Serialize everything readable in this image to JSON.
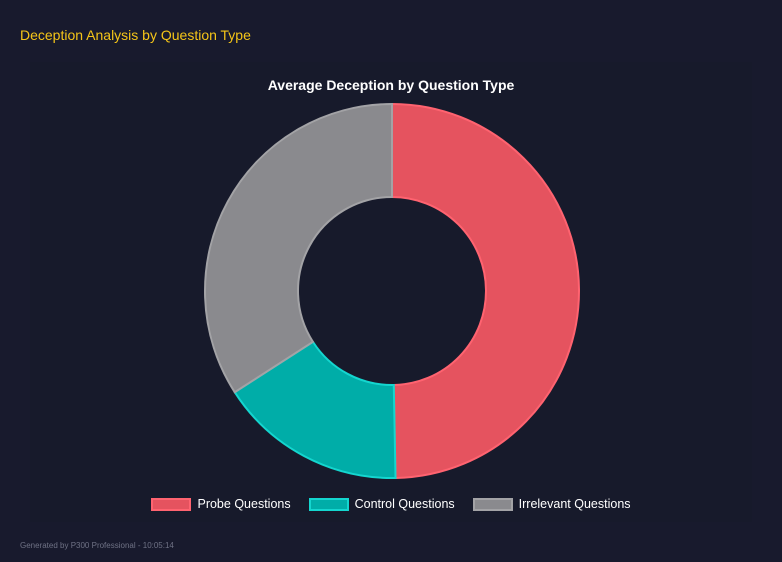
{
  "header": {
    "title": "Deception Analysis by Question Type"
  },
  "footer": {
    "text": "Generated by P300 Professional - 10:05:14"
  },
  "chart_data": {
    "type": "doughnut",
    "title": "Average Deception by Question Type",
    "categories": [
      "Probe Questions",
      "Control Questions",
      "Irrelevant Questions"
    ],
    "values": [
      49.7,
      16.2,
      34.1
    ],
    "colors": [
      "#e5535f",
      "#00ada8",
      "#8a8a8e"
    ],
    "border_colors": [
      "#ff6370",
      "#14d6cf",
      "#a3a3a6"
    ],
    "legend_position": "bottom"
  }
}
